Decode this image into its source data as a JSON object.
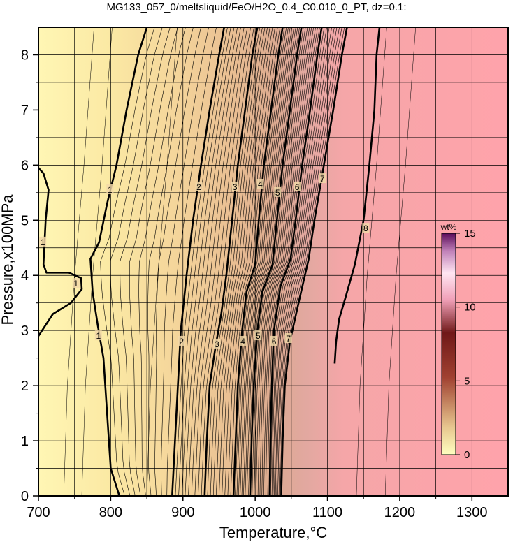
{
  "chart_data": {
    "type": "heatmap",
    "title": "MG133_057_0/meltsliquid/FeO/H2O_0.4_C0.010_0_PT, dz=0.1:",
    "xlabel": "Temperature,°C",
    "ylabel": "Pressure,x100MPa",
    "xlim": [
      700,
      1350
    ],
    "ylim": [
      0,
      8.5
    ],
    "xticks": [
      "700",
      "800",
      "900",
      "1000",
      "1100",
      "1200",
      "1300"
    ],
    "yticks": [
      "0",
      "1",
      "2",
      "3",
      "4",
      "5",
      "6",
      "7",
      "8"
    ],
    "grid": true,
    "colorbar": {
      "label": "wt%",
      "range": [
        0,
        15
      ],
      "ticks": [
        "0",
        "5",
        "10",
        "15"
      ],
      "colors": [
        "#ffffc0",
        "#e8c08a",
        "#8a2020",
        "#ffe0f0",
        "#6a1060"
      ]
    },
    "contour_interval": 0.1,
    "bold_contours": [
      {
        "label": "1",
        "points": [
          [
            700,
            2.9
          ],
          [
            720,
            3.3
          ],
          [
            745,
            3.5
          ],
          [
            760,
            3.75
          ],
          [
            759,
            3.95
          ],
          [
            742,
            4.05
          ],
          [
            711,
            4.05
          ],
          [
            707,
            4.2
          ],
          [
            710,
            5.0
          ],
          [
            714,
            5.55
          ],
          [
            707,
            5.85
          ],
          [
            700,
            5.95
          ]
        ]
      },
      {
        "label": "1",
        "points": [
          [
            812,
            0
          ],
          [
            800,
            0.5
          ],
          [
            795,
            1.5
          ],
          [
            790,
            2.5
          ],
          [
            782,
            3.1
          ],
          [
            775,
            3.7
          ],
          [
            772,
            4.3
          ],
          [
            784,
            4.6
          ],
          [
            795,
            5.3
          ],
          [
            808,
            6.0
          ],
          [
            822,
            7.0
          ],
          [
            838,
            8.0
          ],
          [
            850,
            8.5
          ]
        ]
      },
      {
        "label": "2",
        "points": [
          [
            885,
            0
          ],
          [
            889,
            1.0
          ],
          [
            893,
            2.0
          ],
          [
            897,
            3.0
          ],
          [
            905,
            4.0
          ],
          [
            914,
            5.0
          ],
          [
            925,
            6.0
          ],
          [
            937,
            7.0
          ],
          [
            950,
            8.0
          ],
          [
            957,
            8.5
          ]
        ]
      },
      {
        "label": "3",
        "points": [
          [
            930,
            0
          ],
          [
            933,
            1.0
          ],
          [
            937,
            2.0
          ],
          [
            945,
            2.7
          ],
          [
            953,
            3.3
          ],
          [
            960,
            4.0
          ],
          [
            968,
            5.0
          ],
          [
            976,
            6.0
          ],
          [
            986,
            7.0
          ],
          [
            996,
            8.0
          ],
          [
            1003,
            8.5
          ]
        ]
      },
      {
        "label": "4",
        "points": [
          [
            970,
            0
          ],
          [
            973,
            1.0
          ],
          [
            976,
            2.0
          ],
          [
            982,
            3.0
          ],
          [
            988,
            3.7
          ],
          [
            1000,
            4.2
          ],
          [
            1005,
            5.0
          ],
          [
            1012,
            6.0
          ],
          [
            1022,
            7.0
          ],
          [
            1032,
            8.0
          ],
          [
            1038,
            8.5
          ]
        ]
      },
      {
        "label": "5",
        "points": [
          [
            993,
            0
          ],
          [
            995,
            1.0
          ],
          [
            998,
            2.0
          ],
          [
            1003,
            3.0
          ],
          [
            1010,
            3.7
          ],
          [
            1024,
            4.2
          ],
          [
            1030,
            5.0
          ],
          [
            1038,
            6.0
          ],
          [
            1048,
            7.0
          ],
          [
            1058,
            8.0
          ],
          [
            1064,
            8.5
          ]
        ]
      },
      {
        "label": "6",
        "points": [
          [
            1020,
            0
          ],
          [
            1021,
            1.0
          ],
          [
            1023,
            2.0
          ],
          [
            1026,
            3.0
          ],
          [
            1035,
            3.8
          ],
          [
            1049,
            4.3
          ],
          [
            1056,
            5.0
          ],
          [
            1065,
            6.0
          ],
          [
            1076,
            7.0
          ],
          [
            1086,
            8.0
          ],
          [
            1092,
            8.5
          ]
        ]
      },
      {
        "label": "7",
        "points": [
          [
            1036,
            0
          ],
          [
            1038,
            1.0
          ],
          [
            1041,
            2.0
          ],
          [
            1048,
            2.8
          ],
          [
            1060,
            3.5
          ],
          [
            1074,
            4.3
          ],
          [
            1082,
            5.0
          ],
          [
            1095,
            6.0
          ],
          [
            1108,
            7.0
          ],
          [
            1120,
            8.0
          ],
          [
            1127,
            8.5
          ]
        ]
      },
      {
        "label": "8",
        "points": [
          [
            1110,
            2.4
          ],
          [
            1112,
            2.8
          ],
          [
            1116,
            3.2
          ],
          [
            1125,
            3.6
          ],
          [
            1138,
            4.2
          ],
          [
            1150,
            5.0
          ],
          [
            1158,
            6.0
          ],
          [
            1165,
            7.0
          ],
          [
            1168,
            8.0
          ],
          [
            1172,
            8.5
          ]
        ]
      }
    ],
    "contour_labels": [
      {
        "text": "1",
        "x": 706,
        "y": 4.6
      },
      {
        "text": "1",
        "x": 752,
        "y": 3.85
      },
      {
        "text": "1",
        "x": 783,
        "y": 2.9
      },
      {
        "text": "1",
        "x": 799,
        "y": 5.55
      },
      {
        "text": "2",
        "x": 898,
        "y": 2.8
      },
      {
        "text": "2",
        "x": 922,
        "y": 5.6
      },
      {
        "text": "3",
        "x": 947,
        "y": 2.75
      },
      {
        "text": "3",
        "x": 972,
        "y": 5.6
      },
      {
        "text": "4",
        "x": 983,
        "y": 2.8
      },
      {
        "text": "4",
        "x": 1007,
        "y": 5.65
      },
      {
        "text": "5",
        "x": 1004,
        "y": 2.9
      },
      {
        "text": "5",
        "x": 1031,
        "y": 5.5
      },
      {
        "text": "6",
        "x": 1026,
        "y": 2.8
      },
      {
        "text": "6",
        "x": 1058,
        "y": 5.6
      },
      {
        "text": "7",
        "x": 1046,
        "y": 2.85
      },
      {
        "text": "7",
        "x": 1093,
        "y": 5.75
      },
      {
        "text": "8",
        "x": 1153,
        "y": 4.85
      }
    ]
  }
}
